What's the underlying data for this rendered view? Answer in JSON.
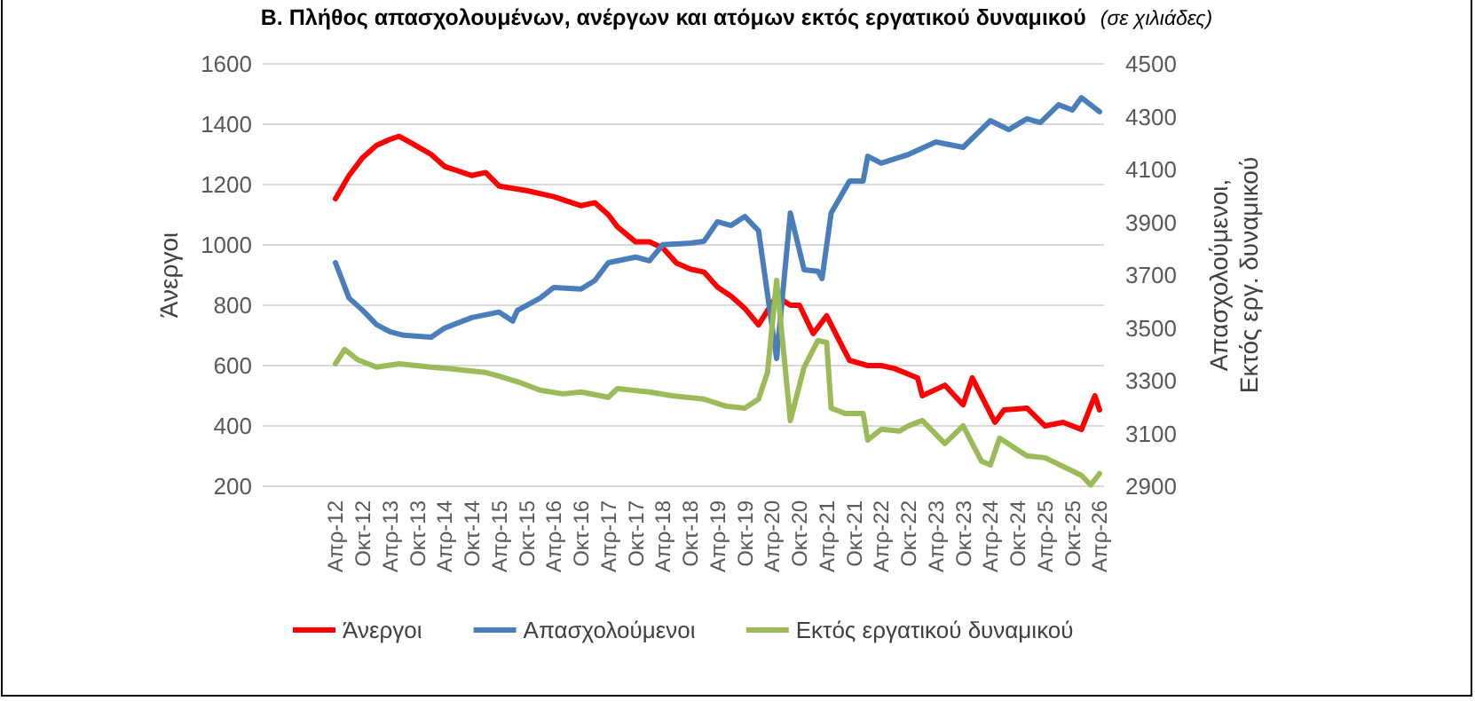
{
  "chart_data": {
    "type": "line",
    "title": "Β. Πλήθος απασχολουμένων, ανέργων και ατόμων εκτός εργατικού δυναμικού",
    "subtitle": "(σε χιλιάδες)",
    "ylabel": "Άνεργοι",
    "y2label": "Απασχολούμενοι, Εκτός εργ. δυναμικού",
    "xlim": [
      "2010-12",
      "2026-05"
    ],
    "xticks": [
      {
        "value": "2012-04",
        "label": "Απρ-12"
      },
      {
        "value": "2012-10",
        "label": "Οκτ-12"
      },
      {
        "value": "2013-04",
        "label": "Απρ-13"
      },
      {
        "value": "2013-10",
        "label": "Οκτ-13"
      },
      {
        "value": "2014-04",
        "label": "Απρ-14"
      },
      {
        "value": "2014-10",
        "label": "Οκτ-14"
      },
      {
        "value": "2015-04",
        "label": "Απρ-15"
      },
      {
        "value": "2015-10",
        "label": "Οκτ-15"
      },
      {
        "value": "2016-04",
        "label": "Απρ-16"
      },
      {
        "value": "2016-10",
        "label": "Οκτ-16"
      },
      {
        "value": "2017-04",
        "label": "Απρ-17"
      },
      {
        "value": "2017-10",
        "label": "Οκτ-17"
      },
      {
        "value": "2018-04",
        "label": "Απρ-18"
      },
      {
        "value": "2018-10",
        "label": "Οκτ-18"
      },
      {
        "value": "2019-04",
        "label": "Απρ-19"
      },
      {
        "value": "2019-10",
        "label": "Οκτ-19"
      },
      {
        "value": "2020-04",
        "label": "Απρ-20"
      },
      {
        "value": "2020-10",
        "label": "Οκτ-20"
      },
      {
        "value": "2021-04",
        "label": "Απρ-21"
      },
      {
        "value": "2021-10",
        "label": "Οκτ-21"
      },
      {
        "value": "2022-04",
        "label": "Απρ-22"
      },
      {
        "value": "2022-10",
        "label": "Οκτ-22"
      },
      {
        "value": "2023-04",
        "label": "Απρ-23"
      },
      {
        "value": "2023-10",
        "label": "Οκτ-23"
      },
      {
        "value": "2024-04",
        "label": "Απρ-24"
      },
      {
        "value": "2024-10",
        "label": "Οκτ-24"
      },
      {
        "value": "2025-04",
        "label": "Απρ-25"
      },
      {
        "value": "2025-10",
        "label": "Οκτ-25"
      },
      {
        "value": "2026-04",
        "label": "Απρ-26"
      }
    ],
    "ylim": [
      200,
      1600
    ],
    "yticks": [
      200,
      400,
      600,
      800,
      1000,
      1200,
      1400,
      1600
    ],
    "y2lim": [
      2900,
      4500
    ],
    "y2ticks": [
      2900,
      3100,
      3300,
      3500,
      3700,
      3900,
      4100,
      4300,
      4500
    ],
    "grid": "y",
    "legend": "bottom",
    "marker": "none",
    "line_style": "solid",
    "series": [
      {
        "name": "Άνεργοι",
        "color": "#ff0000",
        "x": [
          "2012-04",
          "2012-07",
          "2012-10",
          "2013-01",
          "2013-04",
          "2013-06",
          "2013-09",
          "2014-01",
          "2014-04",
          "2014-10",
          "2015-01",
          "2015-04",
          "2015-10",
          "2016-04",
          "2016-10",
          "2017-01",
          "2017-04",
          "2017-06",
          "2017-10",
          "2018-01",
          "2018-04",
          "2018-07",
          "2018-10",
          "2019-01",
          "2019-04",
          "2019-07",
          "2019-10",
          "2020-01",
          "2020-05",
          "2020-08",
          "2020-10",
          "2021-01",
          "2021-04",
          "2021-07",
          "2021-09",
          "2022-01",
          "2022-04",
          "2022-07",
          "2022-12",
          "2023-01",
          "2023-06",
          "2023-10",
          "2023-12",
          "2024-05",
          "2024-07",
          "2024-12",
          "2025-04",
          "2025-08",
          "2025-12",
          "2026-03",
          "2026-04"
        ],
        "values": [
          1153,
          1230,
          1290,
          1330,
          1350,
          1360,
          1335,
          1300,
          1260,
          1230,
          1240,
          1195,
          1180,
          1160,
          1130,
          1140,
          1100,
          1060,
          1010,
          1010,
          990,
          940,
          920,
          910,
          860,
          830,
          790,
          735,
          830,
          800,
          800,
          706,
          765,
          676,
          617,
          600,
          600,
          590,
          559,
          500,
          535,
          470,
          559,
          412,
          453,
          459,
          400,
          412,
          388,
          500,
          453
        ]
      },
      {
        "name": "Απασχολούμενοι",
        "color": "#4a7ebb",
        "axis": "y2",
        "x": [
          "2012-04",
          "2012-07",
          "2012-10",
          "2013-01",
          "2013-04",
          "2013-07",
          "2014-01",
          "2014-04",
          "2014-10",
          "2015-04",
          "2015-07",
          "2015-08",
          "2016-01",
          "2016-04",
          "2016-10",
          "2017-01",
          "2017-04",
          "2017-10",
          "2018-01",
          "2018-04",
          "2018-10",
          "2019-01",
          "2019-04",
          "2019-07",
          "2019-10",
          "2020-01",
          "2020-05",
          "2020-08",
          "2020-11",
          "2021-02",
          "2021-03",
          "2021-05",
          "2021-09",
          "2021-12",
          "2022-01",
          "2022-04",
          "2022-10",
          "2023-04",
          "2023-10",
          "2024-04",
          "2024-08",
          "2024-12",
          "2025-03",
          "2025-07",
          "2025-10",
          "2025-12",
          "2026-04"
        ],
        "values": [
          3747,
          3613,
          3566,
          3512,
          3485,
          3472,
          3465,
          3499,
          3539,
          3560,
          3526,
          3566,
          3613,
          3653,
          3647,
          3680,
          3747,
          3768,
          3754,
          3815,
          3821,
          3828,
          3902,
          3888,
          3922,
          3868,
          3384,
          3935,
          3720,
          3714,
          3687,
          3935,
          4056,
          4056,
          4150,
          4124,
          4157,
          4204,
          4184,
          4285,
          4251,
          4292,
          4278,
          4345,
          4325,
          4372,
          4319
        ]
      },
      {
        "name": "Εκτός εργατικού δυναμικού",
        "color": "#9bbb59",
        "axis": "y2",
        "x": [
          "2012-04",
          "2012-06",
          "2012-09",
          "2013-01",
          "2013-06",
          "2014-01",
          "2014-06",
          "2015-01",
          "2015-04",
          "2015-09",
          "2016-01",
          "2016-06",
          "2016-10",
          "2017-04",
          "2017-06",
          "2018-01",
          "2018-06",
          "2019-01",
          "2019-06",
          "2019-10",
          "2020-01",
          "2020-03",
          "2020-05",
          "2020-08",
          "2020-11",
          "2021-02",
          "2021-04",
          "2021-05",
          "2021-08",
          "2021-12",
          "2022-01",
          "2022-04",
          "2022-08",
          "2022-10",
          "2023-01",
          "2023-06",
          "2023-10",
          "2024-02",
          "2024-04",
          "2024-06",
          "2024-12",
          "2025-04",
          "2025-08",
          "2025-12",
          "2026-02",
          "2026-04"
        ],
        "values": [
          3364,
          3418,
          3378,
          3351,
          3364,
          3351,
          3344,
          3331,
          3317,
          3290,
          3264,
          3250,
          3257,
          3237,
          3270,
          3257,
          3243,
          3230,
          3203,
          3196,
          3230,
          3331,
          3680,
          3149,
          3351,
          3452,
          3445,
          3196,
          3176,
          3176,
          3075,
          3116,
          3109,
          3129,
          3149,
          3062,
          3129,
          2995,
          2981,
          3082,
          3015,
          3008,
          2975,
          2941,
          2905,
          2948
        ]
      }
    ]
  }
}
